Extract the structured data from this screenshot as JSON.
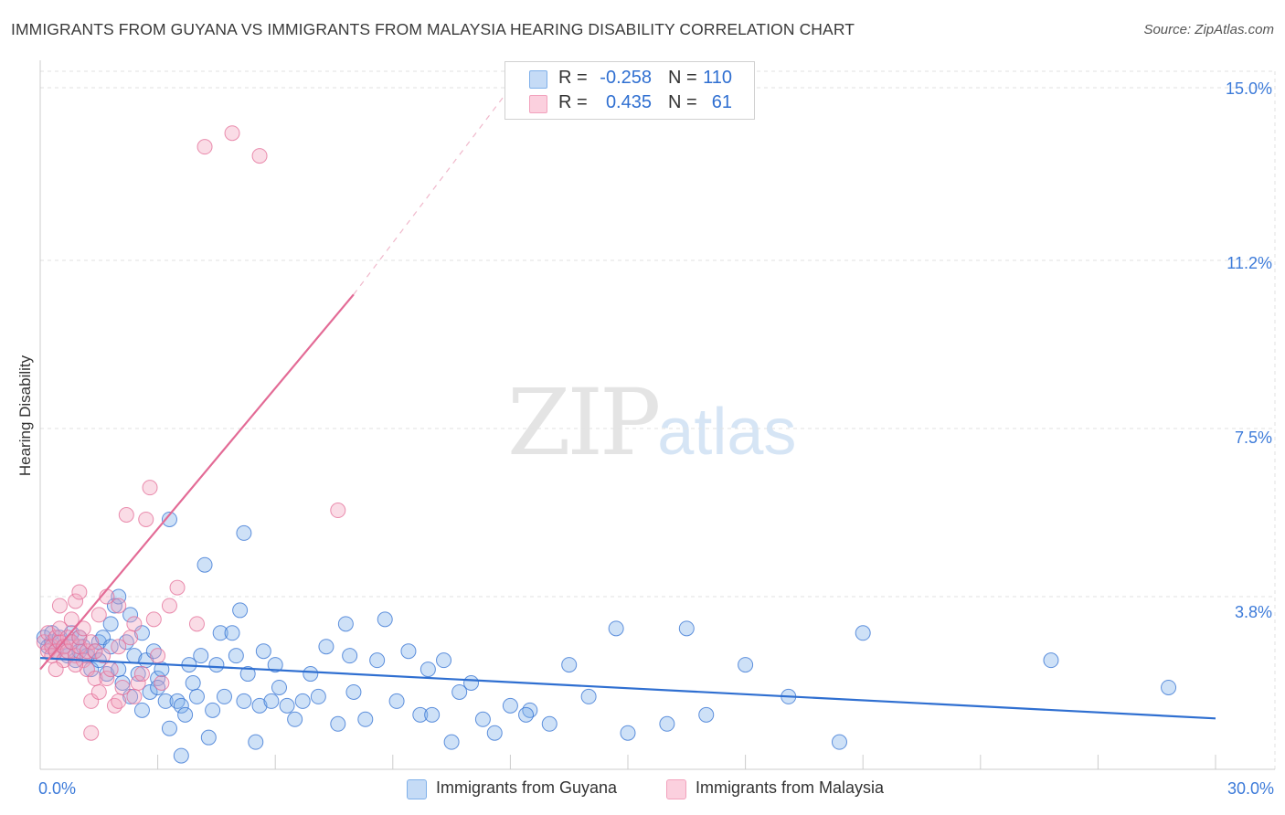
{
  "title": "IMMIGRANTS FROM GUYANA VS IMMIGRANTS FROM MALAYSIA HEARING DISABILITY CORRELATION CHART",
  "source": "Source: ZipAtlas.com",
  "watermark": {
    "zip": "ZIP",
    "atlas": "atlas"
  },
  "colors": {
    "blue": "#7fb0ea",
    "blue_line": "#2f6fd1",
    "pink": "#f2a2bd",
    "pink_line": "#e36b96",
    "grid": "#e2e2e2",
    "tick_text": "#3d7bd9"
  },
  "legend_top": [
    {
      "r_label": "R =",
      "r_value": "-0.258",
      "n_label": "N =",
      "n_value": "110"
    },
    {
      "r_label": "R =",
      "r_value": "0.435",
      "n_label": "N =",
      "n_value": "61"
    }
  ],
  "chart_data": {
    "type": "scatter",
    "title": "IMMIGRANTS FROM GUYANA VS IMMIGRANTS FROM MALAYSIA HEARING DISABILITY CORRELATION CHART",
    "xlabel": "",
    "ylabel": "Hearing Disability",
    "xlim": [
      0,
      30
    ],
    "ylim": [
      0,
      15.5
    ],
    "x_tick_labels": [
      "0.0%",
      "30.0%"
    ],
    "y_ticks": [
      3.8,
      7.5,
      11.2,
      15.0
    ],
    "y_tick_labels": [
      "3.8%",
      "7.5%",
      "11.2%",
      "15.0%"
    ],
    "grid": true,
    "legend_position": "bottom",
    "series": [
      {
        "name": "Immigrants from Guyana",
        "color": "blue",
        "trend": {
          "x": [
            0,
            30
          ],
          "y": [
            2.45,
            1.12
          ]
        },
        "points": [
          [
            0.1,
            2.9
          ],
          [
            0.2,
            2.7
          ],
          [
            0.3,
            2.8
          ],
          [
            0.3,
            3.0
          ],
          [
            0.4,
            2.6
          ],
          [
            0.5,
            2.9
          ],
          [
            0.6,
            2.7
          ],
          [
            0.7,
            2.5
          ],
          [
            0.8,
            2.8
          ],
          [
            0.8,
            3.0
          ],
          [
            0.9,
            2.4
          ],
          [
            1.0,
            2.6
          ],
          [
            1.0,
            2.9
          ],
          [
            1.1,
            2.7
          ],
          [
            1.2,
            2.5
          ],
          [
            1.3,
            2.2
          ],
          [
            1.4,
            2.6
          ],
          [
            1.5,
            2.8
          ],
          [
            1.5,
            2.4
          ],
          [
            1.6,
            2.9
          ],
          [
            1.7,
            2.1
          ],
          [
            1.8,
            3.2
          ],
          [
            1.8,
            2.7
          ],
          [
            1.9,
            3.6
          ],
          [
            2.0,
            3.8
          ],
          [
            2.0,
            2.2
          ],
          [
            2.1,
            1.9
          ],
          [
            2.2,
            2.8
          ],
          [
            2.3,
            1.6
          ],
          [
            2.3,
            3.4
          ],
          [
            2.4,
            2.5
          ],
          [
            2.5,
            2.1
          ],
          [
            2.6,
            1.3
          ],
          [
            2.6,
            3.0
          ],
          [
            2.7,
            2.4
          ],
          [
            2.8,
            1.7
          ],
          [
            2.9,
            2.6
          ],
          [
            3.0,
            2.0
          ],
          [
            3.0,
            1.8
          ],
          [
            3.1,
            2.2
          ],
          [
            3.2,
            1.5
          ],
          [
            3.3,
            0.9
          ],
          [
            3.3,
            5.5
          ],
          [
            3.5,
            1.5
          ],
          [
            3.6,
            1.4
          ],
          [
            3.6,
            0.3
          ],
          [
            3.7,
            1.2
          ],
          [
            3.8,
            2.3
          ],
          [
            3.9,
            1.9
          ],
          [
            4.0,
            1.6
          ],
          [
            4.1,
            2.5
          ],
          [
            4.2,
            4.5
          ],
          [
            4.3,
            0.7
          ],
          [
            4.4,
            1.3
          ],
          [
            4.5,
            2.3
          ],
          [
            4.6,
            3.0
          ],
          [
            4.7,
            1.6
          ],
          [
            4.9,
            3.0
          ],
          [
            5.0,
            2.5
          ],
          [
            5.1,
            3.5
          ],
          [
            5.2,
            1.5
          ],
          [
            5.3,
            2.1
          ],
          [
            5.5,
            0.6
          ],
          [
            5.6,
            1.4
          ],
          [
            5.7,
            2.6
          ],
          [
            5.9,
            1.5
          ],
          [
            6.0,
            2.3
          ],
          [
            6.1,
            1.8
          ],
          [
            6.3,
            1.4
          ],
          [
            6.5,
            1.1
          ],
          [
            6.7,
            1.5
          ],
          [
            6.9,
            2.1
          ],
          [
            7.1,
            1.6
          ],
          [
            7.3,
            2.7
          ],
          [
            7.6,
            1.0
          ],
          [
            7.8,
            3.2
          ],
          [
            7.9,
            2.5
          ],
          [
            8.0,
            1.7
          ],
          [
            8.3,
            1.1
          ],
          [
            8.6,
            2.4
          ],
          [
            8.8,
            3.3
          ],
          [
            9.1,
            1.5
          ],
          [
            9.4,
            2.6
          ],
          [
            9.7,
            1.2
          ],
          [
            10.0,
            1.2
          ],
          [
            10.3,
            2.4
          ],
          [
            10.5,
            0.6
          ],
          [
            10.7,
            1.7
          ],
          [
            11.0,
            1.9
          ],
          [
            11.3,
            1.1
          ],
          [
            11.6,
            0.8
          ],
          [
            12.0,
            1.4
          ],
          [
            12.5,
            1.3
          ],
          [
            13.0,
            1.0
          ],
          [
            13.5,
            2.3
          ],
          [
            14.0,
            1.6
          ],
          [
            15.0,
            0.8
          ],
          [
            16.0,
            1.0
          ],
          [
            17.0,
            1.2
          ],
          [
            18.0,
            2.3
          ],
          [
            9.9,
            2.2
          ],
          [
            5.2,
            5.2
          ],
          [
            14.7,
            3.1
          ],
          [
            16.5,
            3.1
          ],
          [
            21.0,
            3.0
          ],
          [
            25.8,
            2.4
          ],
          [
            28.8,
            1.8
          ],
          [
            12.4,
            1.2
          ],
          [
            20.4,
            0.6
          ],
          [
            19.1,
            1.6
          ]
        ]
      },
      {
        "name": "Immigrants from Malaysia",
        "color": "pink",
        "trend": {
          "x": [
            0,
            8.0
          ],
          "y": [
            2.2,
            10.45
          ]
        },
        "trend_extension": {
          "x": [
            8.0,
            12.0
          ],
          "y": [
            10.45,
            15.0
          ]
        },
        "points": [
          [
            0.1,
            2.8
          ],
          [
            0.2,
            2.6
          ],
          [
            0.2,
            3.0
          ],
          [
            0.3,
            2.7
          ],
          [
            0.3,
            2.5
          ],
          [
            0.4,
            2.9
          ],
          [
            0.4,
            2.6
          ],
          [
            0.5,
            2.8
          ],
          [
            0.5,
            3.1
          ],
          [
            0.6,
            2.7
          ],
          [
            0.6,
            2.4
          ],
          [
            0.7,
            2.9
          ],
          [
            0.7,
            2.6
          ],
          [
            0.8,
            2.8
          ],
          [
            0.8,
            3.3
          ],
          [
            0.9,
            2.5
          ],
          [
            0.9,
            3.7
          ],
          [
            1.0,
            2.7
          ],
          [
            1.0,
            2.9
          ],
          [
            1.1,
            2.4
          ],
          [
            1.1,
            3.1
          ],
          [
            1.2,
            2.6
          ],
          [
            1.2,
            2.2
          ],
          [
            1.3,
            2.8
          ],
          [
            1.3,
            1.5
          ],
          [
            1.4,
            2.0
          ],
          [
            1.4,
            2.6
          ],
          [
            1.5,
            3.4
          ],
          [
            1.5,
            1.7
          ],
          [
            1.6,
            2.5
          ],
          [
            1.7,
            2.0
          ],
          [
            1.7,
            3.8
          ],
          [
            1.8,
            2.2
          ],
          [
            1.9,
            1.4
          ],
          [
            2.0,
            2.7
          ],
          [
            2.0,
            3.6
          ],
          [
            2.1,
            1.8
          ],
          [
            2.2,
            5.6
          ],
          [
            2.3,
            2.9
          ],
          [
            2.4,
            3.2
          ],
          [
            2.5,
            1.9
          ],
          [
            2.6,
            2.1
          ],
          [
            2.7,
            5.5
          ],
          [
            2.8,
            6.2
          ],
          [
            2.9,
            3.3
          ],
          [
            3.0,
            2.5
          ],
          [
            3.1,
            1.9
          ],
          [
            3.3,
            3.6
          ],
          [
            3.5,
            4.0
          ],
          [
            4.0,
            3.2
          ],
          [
            4.2,
            13.7
          ],
          [
            4.9,
            14.0
          ],
          [
            5.6,
            13.5
          ],
          [
            7.6,
            5.7
          ],
          [
            0.5,
            3.6
          ],
          [
            1.0,
            3.9
          ],
          [
            1.3,
            0.8
          ],
          [
            2.4,
            1.6
          ],
          [
            2.0,
            1.5
          ],
          [
            0.9,
            2.3
          ],
          [
            0.4,
            2.2
          ]
        ]
      }
    ]
  },
  "legend_bottom": [
    {
      "label": "Immigrants from Guyana"
    },
    {
      "label": "Immigrants from Malaysia"
    }
  ]
}
